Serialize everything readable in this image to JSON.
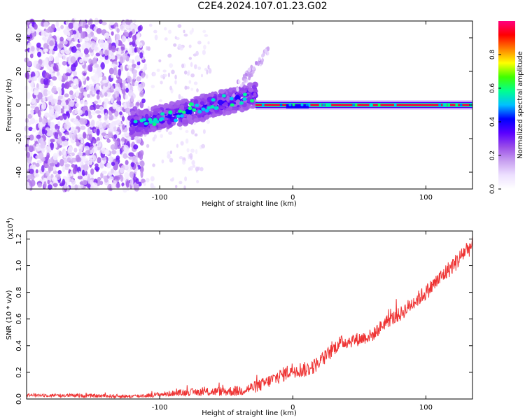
{
  "title": "C2E4.2024.107.01.23.G02",
  "chart_data": [
    {
      "type": "heatmap",
      "name": "spectrogram",
      "xlabel": "Height of straight line (km)",
      "ylabel": "Frequency (Hz)",
      "xlim": [
        -200,
        135
      ],
      "ylim": [
        -50,
        50
      ],
      "xticks": [
        -100,
        0,
        100
      ],
      "yticks": [
        -40,
        -20,
        0,
        20,
        40
      ],
      "colorbar": {
        "label": "Normalized spectral amplitude",
        "range": [
          0,
          1
        ],
        "ticks": [
          "0.0",
          "0.2",
          "0.4",
          "0.6",
          "0.8"
        ],
        "tick_values": [
          0.0,
          0.2,
          0.4,
          0.6,
          0.8
        ],
        "colors": [
          "#ffffff",
          "#ede0ff",
          "#c8a0f0",
          "#9a4de8",
          "#5a00ff",
          "#0000ff",
          "#00c0ff",
          "#00ff90",
          "#40ff00",
          "#ffff00",
          "#ff8000",
          "#ff0000",
          "#ff0080"
        ]
      },
      "features": [
        {
          "label": "diffuse noise",
          "x_range": [
            -200,
            -112
          ],
          "y_range": [
            -50,
            50
          ],
          "amplitude": 0.1
        },
        {
          "label": "rising band",
          "x_range": [
            -122,
            -28
          ],
          "y_start": -12,
          "y_end": 6,
          "amplitude": 0.3
        },
        {
          "label": "upper streak",
          "x_range": [
            -45,
            -18
          ],
          "y_start": 8,
          "y_end": 32,
          "amplitude": 0.1
        },
        {
          "label": "stable line",
          "x_range": [
            -28,
            135
          ],
          "y": 0,
          "amplitude": 0.95
        }
      ]
    },
    {
      "type": "line",
      "name": "snr",
      "xlabel": "Height of straight line (km)",
      "ylabel": "SNR (10 * v/v)",
      "multiplier": "(x10",
      "exponent": "4",
      "multiplier_close": ")",
      "xlim": [
        -200,
        135
      ],
      "ylim": [
        0,
        1.26
      ],
      "xticks": [
        -100,
        0,
        100
      ],
      "yticks": [
        0.0,
        0.2,
        0.4,
        0.6,
        0.8,
        1.0,
        1.2
      ],
      "ytick_labels": [
        "0.0",
        "0.2",
        "0.4",
        "0.6",
        "0.8",
        "1.0",
        "1.2"
      ],
      "color": "#ee3333",
      "trend": {
        "x": [
          -200,
          -120,
          -105,
          -80,
          -40,
          -25,
          -10,
          0,
          10,
          15,
          25,
          35,
          50,
          60,
          70,
          80,
          90,
          100,
          110,
          120,
          125,
          130,
          135
        ],
        "y": [
          0.03,
          0.02,
          0.03,
          0.05,
          0.06,
          0.1,
          0.17,
          0.22,
          0.22,
          0.24,
          0.32,
          0.42,
          0.45,
          0.48,
          0.58,
          0.63,
          0.72,
          0.8,
          0.9,
          1.0,
          1.05,
          1.12,
          1.15
        ]
      },
      "noise_amplitude": [
        {
          "x": -200,
          "amp": 0.012
        },
        {
          "x": -110,
          "amp": 0.015
        },
        {
          "x": -40,
          "amp": 0.04
        },
        {
          "x": 0,
          "amp": 0.06
        },
        {
          "x": 60,
          "amp": 0.05
        },
        {
          "x": 135,
          "amp": 0.07
        }
      ]
    }
  ]
}
